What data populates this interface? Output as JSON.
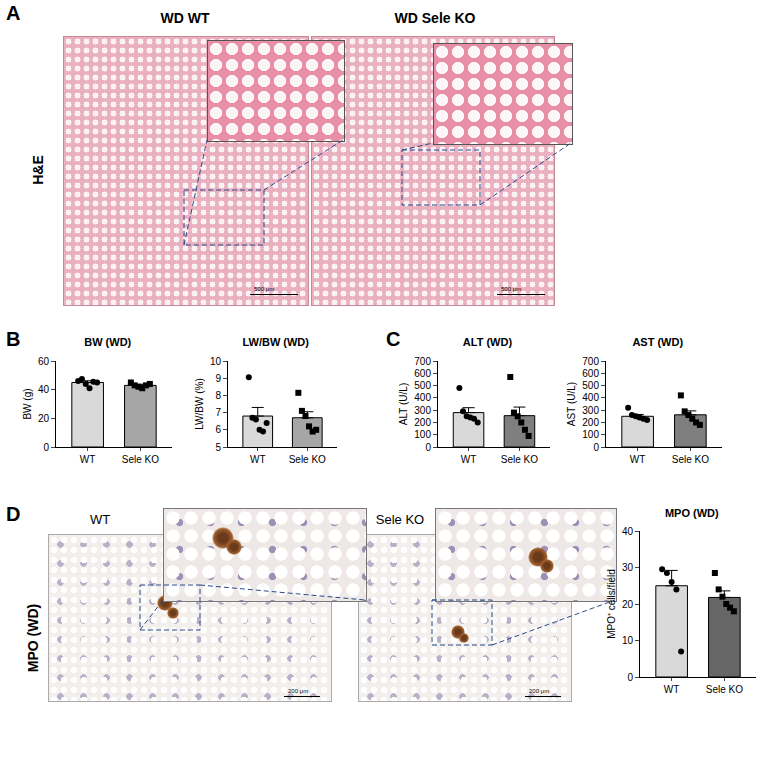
{
  "figure": {
    "A": {
      "label": "A",
      "row_label": "H&E",
      "images": [
        {
          "title": "WD WT",
          "scale": "500 μm"
        },
        {
          "title": "WD Sele KO",
          "scale": "500 μm"
        }
      ]
    },
    "B": {
      "label": "B"
    },
    "C": {
      "label": "C"
    },
    "D": {
      "label": "D",
      "row_label": "MPO (WD)",
      "images": [
        {
          "title": "WT",
          "scale": "200 μm"
        },
        {
          "title": "Sele KO",
          "scale": "200 μm"
        }
      ]
    }
  },
  "chart_data": [
    {
      "type": "bar",
      "title": "BW (WD)",
      "y_label": "BW (g)",
      "categories": [
        "WT",
        "Sele KO"
      ],
      "values": [
        45,
        43
      ],
      "errors": [
        1.2,
        0.8
      ],
      "colors": [
        "#d9d9d9",
        "#a6a6a6"
      ],
      "points": [
        {
          "marker": "circle",
          "values": [
            46,
            47.5,
            44,
            41,
            45.5,
            45
          ]
        },
        {
          "marker": "square",
          "values": [
            45,
            43,
            42,
            41,
            43,
            44
          ]
        }
      ],
      "ylim": [
        0,
        60
      ],
      "yticks": [
        0,
        20,
        40,
        60
      ],
      "grid": false
    },
    {
      "type": "bar",
      "title": "LW/BW (WD)",
      "y_label": "LW/BW (%)",
      "categories": [
        "WT",
        "Sele KO"
      ],
      "values": [
        6.8,
        6.7
      ],
      "errors": [
        0.5,
        0.35
      ],
      "colors": [
        "#d9d9d9",
        "#a6a6a6"
      ],
      "points": [
        {
          "marker": "circle",
          "values": [
            9.05,
            6.7,
            6.6,
            6.0,
            5.9,
            6.4
          ]
        },
        {
          "marker": "square",
          "values": [
            8.15,
            7.1,
            6.8,
            6.2,
            5.9,
            6.0
          ]
        }
      ],
      "ylim": [
        5,
        10
      ],
      "yticks": [
        5,
        6,
        7,
        8,
        9,
        10
      ],
      "grid": false
    },
    {
      "type": "bar",
      "title": "ALT (WD)",
      "y_label": "ALT (U/L)",
      "categories": [
        "WT",
        "Sele KO"
      ],
      "values": [
        280,
        255
      ],
      "errors": [
        40,
        70
      ],
      "colors": [
        "#d9d9d9",
        "#7f7f7f"
      ],
      "points": [
        {
          "marker": "circle",
          "values": [
            480,
            290,
            250,
            240,
            230,
            200
          ]
        },
        {
          "marker": "square",
          "values": [
            570,
            280,
            250,
            200,
            140,
            90
          ]
        }
      ],
      "ylim": [
        0,
        700
      ],
      "yticks": [
        0,
        100,
        200,
        300,
        400,
        500,
        600,
        700
      ],
      "grid": false
    },
    {
      "type": "bar",
      "title": "AST (WD)",
      "y_label": "AST (U/L)",
      "categories": [
        "WT",
        "Sele KO"
      ],
      "values": [
        250,
        262
      ],
      "errors": [
        15,
        32
      ],
      "colors": [
        "#d9d9d9",
        "#7f7f7f"
      ],
      "points": [
        {
          "marker": "circle",
          "values": [
            320,
            260,
            250,
            240,
            230,
            220
          ]
        },
        {
          "marker": "square",
          "values": [
            420,
            290,
            260,
            230,
            200,
            180
          ]
        }
      ],
      "ylim": [
        0,
        700
      ],
      "yticks": [
        0,
        100,
        200,
        300,
        400,
        500,
        600,
        700
      ],
      "grid": false
    },
    {
      "type": "bar",
      "title": "MPO (WD)",
      "y_label": "MPO⁺ cells/field",
      "categories": [
        "WT",
        "Sele KO"
      ],
      "values": [
        25,
        21.8
      ],
      "errors": [
        4.2,
        1.8
      ],
      "colors": [
        "#d9d9d9",
        "#666666"
      ],
      "points": [
        {
          "marker": "circle",
          "values": [
            29.5,
            28.5,
            26,
            24,
            7
          ]
        },
        {
          "marker": "square",
          "values": [
            28.5,
            24,
            22,
            20,
            19,
            18
          ]
        }
      ],
      "ylim": [
        0,
        40
      ],
      "yticks": [
        0,
        10,
        20,
        30,
        40
      ],
      "grid": false
    }
  ]
}
